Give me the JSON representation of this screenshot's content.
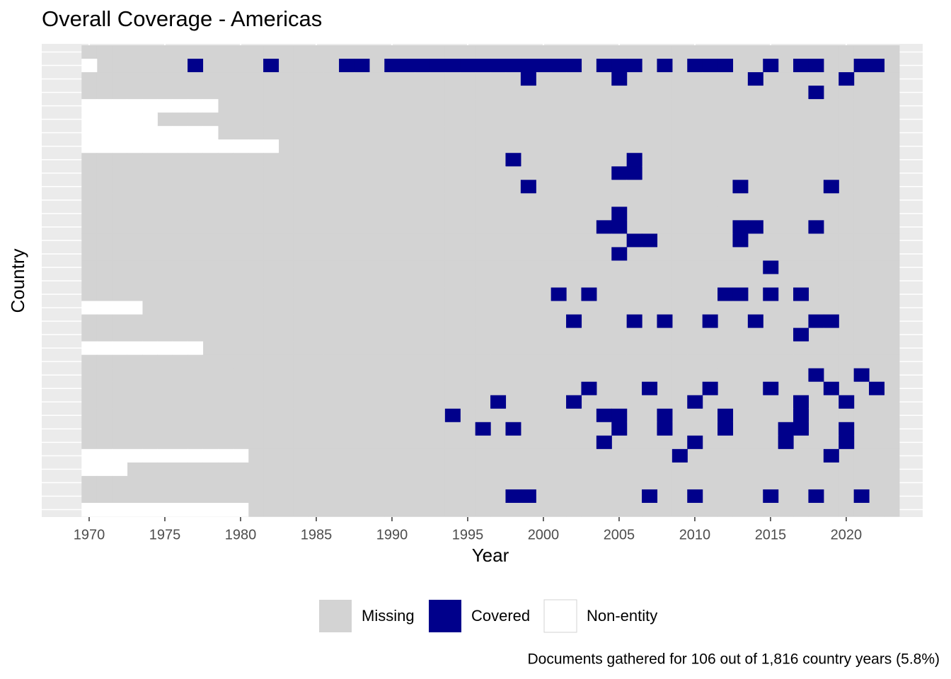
{
  "chart_data": {
    "type": "heatmap",
    "title": "Overall Coverage - Americas",
    "x_label": "Year",
    "y_label": "Country",
    "caption": "Documents gathered for 106 out of 1,816 country years (5.8%)",
    "x": [
      1970,
      1971,
      1972,
      1973,
      1974,
      1975,
      1976,
      1977,
      1978,
      1979,
      1980,
      1981,
      1982,
      1983,
      1984,
      1985,
      1986,
      1987,
      1988,
      1989,
      1990,
      1991,
      1992,
      1993,
      1994,
      1995,
      1996,
      1997,
      1998,
      1999,
      2000,
      2001,
      2002,
      2003,
      2004,
      2005,
      2006,
      2007,
      2008,
      2009,
      2010,
      2011,
      2012,
      2013,
      2014,
      2015,
      2016,
      2017,
      2018,
      2019,
      2020,
      2021,
      2022,
      2023
    ],
    "xlim": [
      1966.87,
      2025.05
    ],
    "xticks": [
      1970,
      1975,
      1980,
      1985,
      1990,
      1995,
      2000,
      2005,
      2010,
      2015,
      2020
    ],
    "series": [
      {
        "name": "Missing",
        "color": "#d3d3d3"
      },
      {
        "name": "Covered",
        "color": "#00008b"
      },
      {
        "name": "Non-entity",
        "color": "#ffffff"
      }
    ],
    "legend": "bottom",
    "grid": true,
    "rows": [
      {
        "covered": [],
        "non_entity": []
      },
      {
        "covered": [
          1977,
          1982,
          1987,
          1988,
          1990,
          1991,
          1992,
          1993,
          1994,
          1995,
          1996,
          1997,
          1998,
          1999,
          2000,
          2001,
          2002,
          2004,
          2005,
          2006,
          2008,
          2010,
          2011,
          2012,
          2015,
          2017,
          2018,
          2021,
          2022
        ],
        "non_entity": [
          1970
        ]
      },
      {
        "covered": [
          1999,
          2005,
          2014,
          2020
        ],
        "non_entity": []
      },
      {
        "covered": [
          2018
        ],
        "non_entity": []
      },
      {
        "covered": [],
        "non_entity": [
          1970,
          1971,
          1972,
          1973,
          1974,
          1975,
          1976,
          1977,
          1978
        ]
      },
      {
        "covered": [],
        "non_entity": [
          1970,
          1971,
          1972,
          1973,
          1974
        ]
      },
      {
        "covered": [],
        "non_entity": [
          1970,
          1971,
          1972,
          1973,
          1974,
          1975,
          1976,
          1977,
          1978
        ]
      },
      {
        "covered": [],
        "non_entity": [
          1970,
          1971,
          1972,
          1973,
          1974,
          1975,
          1976,
          1977,
          1978,
          1979,
          1980,
          1981,
          1982
        ]
      },
      {
        "covered": [
          1998,
          2006
        ],
        "non_entity": []
      },
      {
        "covered": [
          2005,
          2006
        ],
        "non_entity": []
      },
      {
        "covered": [
          1999,
          2013,
          2019
        ],
        "non_entity": []
      },
      {
        "covered": [],
        "non_entity": []
      },
      {
        "covered": [
          2005
        ],
        "non_entity": []
      },
      {
        "covered": [
          2004,
          2005,
          2013,
          2014,
          2018
        ],
        "non_entity": []
      },
      {
        "covered": [
          2006,
          2007,
          2013
        ],
        "non_entity": []
      },
      {
        "covered": [
          2005
        ],
        "non_entity": []
      },
      {
        "covered": [
          2015
        ],
        "non_entity": []
      },
      {
        "covered": [],
        "non_entity": []
      },
      {
        "covered": [
          2001,
          2003,
          2012,
          2013,
          2015,
          2017
        ],
        "non_entity": []
      },
      {
        "covered": [],
        "non_entity": [
          1970,
          1971,
          1972,
          1973
        ]
      },
      {
        "covered": [
          2002,
          2006,
          2008,
          2011,
          2014,
          2018,
          2019
        ],
        "non_entity": []
      },
      {
        "covered": [
          2017
        ],
        "non_entity": []
      },
      {
        "covered": [],
        "non_entity": [
          1970,
          1971,
          1972,
          1973,
          1974,
          1975,
          1976,
          1977
        ]
      },
      {
        "covered": [],
        "non_entity": []
      },
      {
        "covered": [
          2018,
          2021
        ],
        "non_entity": []
      },
      {
        "covered": [
          2003,
          2007,
          2011,
          2015,
          2019,
          2022
        ],
        "non_entity": []
      },
      {
        "covered": [
          1997,
          2002,
          2010,
          2017,
          2020
        ],
        "non_entity": []
      },
      {
        "covered": [
          1994,
          2004,
          2005,
          2008,
          2012,
          2017
        ],
        "non_entity": []
      },
      {
        "covered": [
          1996,
          1998,
          2005,
          2008,
          2012,
          2016,
          2017,
          2020
        ],
        "non_entity": []
      },
      {
        "covered": [
          2004,
          2010,
          2016,
          2020
        ],
        "non_entity": []
      },
      {
        "covered": [
          2009,
          2019
        ],
        "non_entity": [
          1970,
          1971,
          1972,
          1973,
          1974,
          1975,
          1976,
          1977,
          1978,
          1979,
          1980
        ]
      },
      {
        "covered": [],
        "non_entity": [
          1970,
          1971,
          1972
        ]
      },
      {
        "covered": [],
        "non_entity": []
      },
      {
        "covered": [
          1998,
          1999,
          2007,
          2010,
          2015,
          2018,
          2021
        ],
        "non_entity": []
      },
      {
        "covered": [],
        "non_entity": [
          1970,
          1971,
          1972,
          1973,
          1974,
          1975,
          1976,
          1977,
          1978,
          1979,
          1980
        ]
      }
    ]
  }
}
